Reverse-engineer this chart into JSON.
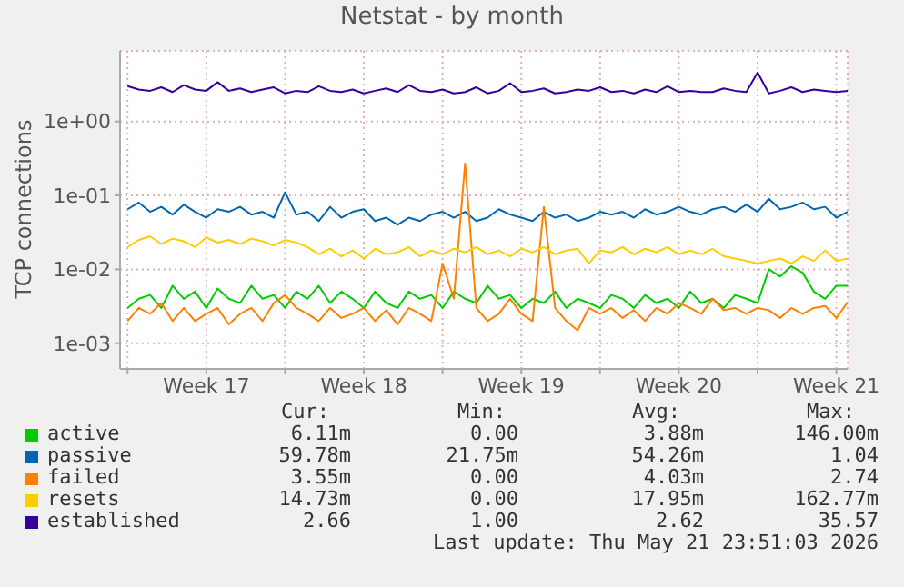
{
  "chart_data": {
    "type": "line",
    "title": "Netstat - by month",
    "ylabel": "TCP connections",
    "log": "y",
    "grid": true,
    "legend": "bottom",
    "marker": "none",
    "line_style": "solid",
    "ylim": [
      0.00045,
      9
    ],
    "yticks": [
      {
        "value": 1,
        "label": "1e+00"
      },
      {
        "value": 0.1,
        "label": "1e-01"
      },
      {
        "value": 0.01,
        "label": "1e-02"
      },
      {
        "value": 0.001,
        "label": "1e-03"
      }
    ],
    "xlim": [
      "2026-04-19T16:00",
      "2026-05-22T00:00"
    ],
    "xticks": [
      {
        "value": "2026-04-20",
        "label": null
      },
      {
        "value": "2026-04-23T12:00",
        "label": "Week 17"
      },
      {
        "value": "2026-04-27",
        "label": null
      },
      {
        "value": "2026-04-30T12:00",
        "label": "Week 18"
      },
      {
        "value": "2026-05-04",
        "label": null
      },
      {
        "value": "2026-05-07T12:00",
        "label": "Week 19"
      },
      {
        "value": "2026-05-11",
        "label": null
      },
      {
        "value": "2026-05-14T12:00",
        "label": "Week 20"
      },
      {
        "value": "2026-05-18",
        "label": null
      },
      {
        "value": "2026-05-21T12:00",
        "label": "Week 21"
      }
    ],
    "x": [
      "2026-04-20T00:00",
      "2026-04-20T12:00",
      "2026-04-21T00:00",
      "2026-04-21T12:00",
      "2026-04-22T00:00",
      "2026-04-22T12:00",
      "2026-04-23T00:00",
      "2026-04-23T12:00",
      "2026-04-24T00:00",
      "2026-04-24T12:00",
      "2026-04-25T00:00",
      "2026-04-25T12:00",
      "2026-04-26T00:00",
      "2026-04-26T12:00",
      "2026-04-27T00:00",
      "2026-04-27T12:00",
      "2026-04-28T00:00",
      "2026-04-28T12:00",
      "2026-04-29T00:00",
      "2026-04-29T12:00",
      "2026-04-30T00:00",
      "2026-04-30T12:00",
      "2026-05-01T00:00",
      "2026-05-01T12:00",
      "2026-05-02T00:00",
      "2026-05-02T12:00",
      "2026-05-03T00:00",
      "2026-05-03T12:00",
      "2026-05-04T00:00",
      "2026-05-04T12:00",
      "2026-05-05T00:00",
      "2026-05-05T12:00",
      "2026-05-06T00:00",
      "2026-05-06T12:00",
      "2026-05-07T00:00",
      "2026-05-07T12:00",
      "2026-05-08T00:00",
      "2026-05-08T12:00",
      "2026-05-09T00:00",
      "2026-05-09T12:00",
      "2026-05-10T00:00",
      "2026-05-10T12:00",
      "2026-05-11T00:00",
      "2026-05-11T12:00",
      "2026-05-12T00:00",
      "2026-05-12T12:00",
      "2026-05-13T00:00",
      "2026-05-13T12:00",
      "2026-05-14T00:00",
      "2026-05-14T12:00",
      "2026-05-15T00:00",
      "2026-05-15T12:00",
      "2026-05-16T00:00",
      "2026-05-16T12:00",
      "2026-05-17T00:00",
      "2026-05-17T12:00",
      "2026-05-18T00:00",
      "2026-05-18T12:00",
      "2026-05-19T00:00",
      "2026-05-19T12:00",
      "2026-05-20T00:00",
      "2026-05-20T12:00",
      "2026-05-21T00:00",
      "2026-05-21T12:00",
      "2026-05-22T00:00"
    ],
    "series": [
      {
        "name": "active",
        "color": "#00cc00",
        "values": [
          0.003,
          0.004,
          0.0045,
          0.003,
          0.006,
          0.004,
          0.005,
          0.003,
          0.0055,
          0.004,
          0.0035,
          0.006,
          0.004,
          0.0045,
          0.003,
          0.005,
          0.004,
          0.006,
          0.0035,
          0.005,
          0.004,
          0.003,
          0.005,
          0.0035,
          0.003,
          0.005,
          0.004,
          0.0045,
          0.003,
          0.005,
          0.004,
          0.0035,
          0.006,
          0.004,
          0.0045,
          0.003,
          0.004,
          0.0035,
          0.005,
          0.003,
          0.004,
          0.0035,
          0.003,
          0.0045,
          0.004,
          0.003,
          0.0045,
          0.0035,
          0.004,
          0.003,
          0.005,
          0.0035,
          0.004,
          0.003,
          0.0045,
          0.004,
          0.0035,
          0.01,
          0.008,
          0.011,
          0.009,
          0.005,
          0.004,
          0.006,
          0.006
        ]
      },
      {
        "name": "passive",
        "color": "#0066b3",
        "values": [
          0.065,
          0.08,
          0.06,
          0.07,
          0.055,
          0.075,
          0.06,
          0.05,
          0.065,
          0.06,
          0.07,
          0.055,
          0.06,
          0.05,
          0.11,
          0.055,
          0.06,
          0.045,
          0.07,
          0.05,
          0.06,
          0.065,
          0.045,
          0.05,
          0.04,
          0.05,
          0.045,
          0.055,
          0.06,
          0.05,
          0.06,
          0.045,
          0.05,
          0.065,
          0.055,
          0.05,
          0.045,
          0.06,
          0.05,
          0.055,
          0.045,
          0.05,
          0.06,
          0.055,
          0.06,
          0.05,
          0.065,
          0.055,
          0.06,
          0.07,
          0.06,
          0.055,
          0.065,
          0.07,
          0.06,
          0.075,
          0.06,
          0.09,
          0.065,
          0.07,
          0.08,
          0.065,
          0.07,
          0.05,
          0.06
        ]
      },
      {
        "name": "failed",
        "color": "#ff8000",
        "values": [
          0.002,
          0.003,
          0.0025,
          0.0035,
          0.002,
          0.003,
          0.002,
          0.0025,
          0.003,
          0.0018,
          0.0025,
          0.003,
          0.002,
          0.0035,
          0.0045,
          0.003,
          0.0025,
          0.002,
          0.003,
          0.0022,
          0.0025,
          0.003,
          0.002,
          0.0028,
          0.0018,
          0.003,
          0.0025,
          0.002,
          0.012,
          0.004,
          0.27,
          0.003,
          0.002,
          0.0025,
          0.004,
          0.0025,
          0.002,
          0.07,
          0.003,
          0.002,
          0.0015,
          0.003,
          0.0025,
          0.003,
          0.0022,
          0.0028,
          0.002,
          0.003,
          0.0025,
          0.0035,
          0.003,
          0.0025,
          0.004,
          0.0028,
          0.003,
          0.0025,
          0.003,
          0.0028,
          0.0022,
          0.003,
          0.0025,
          0.003,
          0.0032,
          0.0022,
          0.0036
        ]
      },
      {
        "name": "resets",
        "color": "#ffcc00",
        "values": [
          0.02,
          0.025,
          0.028,
          0.022,
          0.026,
          0.024,
          0.02,
          0.027,
          0.023,
          0.025,
          0.022,
          0.026,
          0.024,
          0.021,
          0.025,
          0.023,
          0.02,
          0.016,
          0.019,
          0.015,
          0.018,
          0.014,
          0.019,
          0.016,
          0.017,
          0.02,
          0.015,
          0.018,
          0.016,
          0.019,
          0.017,
          0.02,
          0.016,
          0.018,
          0.015,
          0.019,
          0.017,
          0.02,
          0.016,
          0.018,
          0.019,
          0.012,
          0.018,
          0.017,
          0.02,
          0.016,
          0.019,
          0.017,
          0.02,
          0.016,
          0.018,
          0.016,
          0.019,
          0.015,
          0.014,
          0.013,
          0.012,
          0.013,
          0.014,
          0.012,
          0.015,
          0.013,
          0.018,
          0.013,
          0.014
        ]
      },
      {
        "name": "established",
        "color": "#330099",
        "values": [
          3.0,
          2.7,
          2.6,
          2.9,
          2.5,
          3.1,
          2.7,
          2.6,
          3.4,
          2.6,
          2.8,
          2.5,
          2.7,
          2.9,
          2.4,
          2.6,
          2.5,
          3.0,
          2.6,
          2.5,
          2.7,
          2.4,
          2.6,
          2.8,
          2.5,
          3.1,
          2.6,
          2.5,
          2.7,
          2.4,
          2.5,
          2.9,
          2.4,
          2.6,
          3.3,
          2.5,
          2.6,
          2.8,
          2.4,
          2.5,
          2.7,
          2.6,
          2.9,
          2.5,
          2.6,
          2.4,
          2.7,
          2.5,
          3.0,
          2.5,
          2.6,
          2.5,
          2.5,
          2.8,
          2.6,
          2.5,
          4.6,
          2.4,
          2.6,
          2.9,
          2.5,
          2.7,
          2.6,
          2.5,
          2.6
        ]
      }
    ],
    "annotations": [
      "Cur:",
      "Min:",
      "Avg:",
      "Max:",
      "6.11m",
      "0.00",
      "3.88m",
      "146.00m",
      "59.78m",
      "21.75m",
      "54.26m",
      "1.04",
      "3.55m",
      "0.00",
      "4.03m",
      "2.74",
      "14.73m",
      "0.00",
      "17.95m",
      "162.77m",
      "2.66",
      "1.00",
      "2.62",
      "35.57",
      "Last update: Thu May 21 23:51:03 2026"
    ]
  }
}
